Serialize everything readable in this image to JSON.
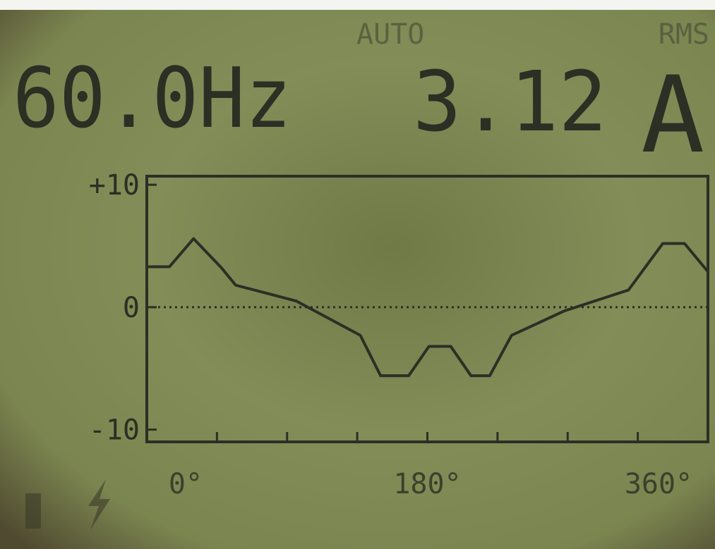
{
  "chart_data": {
    "type": "line",
    "readout": {
      "frequency": "60.0Hz",
      "value": "3.12",
      "unit": "A",
      "range_mode": "AUTO",
      "measure_mode": "RMS"
    },
    "x": [
      0,
      14.5,
      30,
      48,
      57,
      96,
      137,
      150,
      168,
      181,
      195,
      208,
      220,
      234,
      268,
      309,
      331,
      345,
      360
    ],
    "series": [
      {
        "color": "#2c2f24",
        "values": [
          3.3,
          3.3,
          5.6,
          3.2,
          1.8,
          0.5,
          -2.3,
          -5.6,
          -5.6,
          -3.2,
          -3.2,
          -5.6,
          -5.6,
          -2.3,
          -0.3,
          1.4,
          5.2,
          5.2,
          2.9
        ]
      }
    ],
    "xlim": [
      0,
      360
    ],
    "xticks": [
      45,
      90,
      135,
      180,
      225,
      270,
      315
    ],
    "xtick_labels": [
      {
        "value": 0,
        "label": "0°"
      },
      {
        "value": 180,
        "label": "180°"
      },
      {
        "value": 360,
        "label": "360°"
      }
    ],
    "ylim": [
      -11,
      10.7
    ],
    "yticks": [
      {
        "value": 10,
        "label": "+10"
      },
      0,
      {
        "value": -10,
        "label": "-10"
      }
    ],
    "zero_line": true
  }
}
